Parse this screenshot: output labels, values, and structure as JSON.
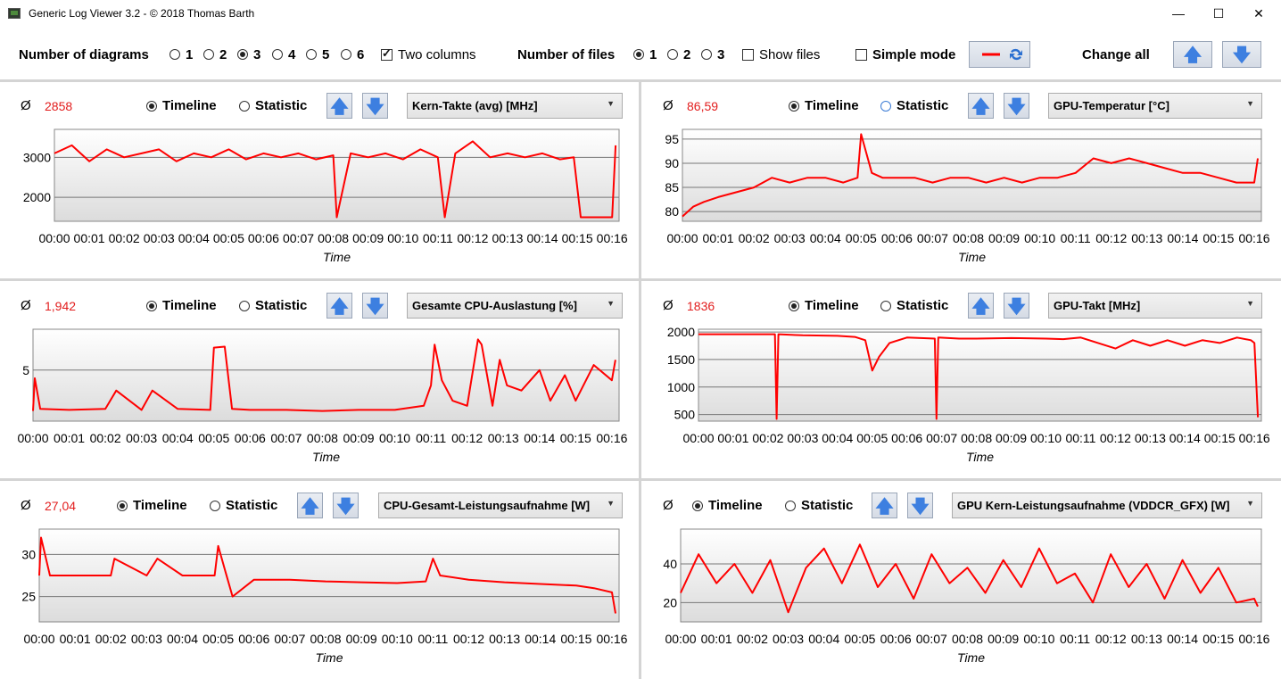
{
  "window": {
    "title": "Generic Log Viewer 3.2 - © 2018 Thomas Barth",
    "minimize": "—",
    "maximize": "☐",
    "close": "✕"
  },
  "toolbar": {
    "diagrams_label": "Number of diagrams",
    "diagram_options": [
      "1",
      "2",
      "3",
      "4",
      "5",
      "6"
    ],
    "diagram_selected": "3",
    "two_columns_label": "Two columns",
    "two_columns_checked": true,
    "files_label": "Number of files",
    "file_options": [
      "1",
      "2",
      "3"
    ],
    "file_selected": "1",
    "show_files_label": "Show files",
    "show_files_checked": false,
    "simple_mode_label": "Simple mode",
    "simple_mode_checked": false,
    "change_all_label": "Change all"
  },
  "common": {
    "avg_symbol": "Ø",
    "timeline_label": "Timeline",
    "statistic_label": "Statistic",
    "x_axis_title": "Time",
    "x_ticks": [
      "00:00",
      "00:01",
      "00:02",
      "00:03",
      "00:04",
      "00:05",
      "00:06",
      "00:07",
      "00:08",
      "00:09",
      "00:10",
      "00:11",
      "00:12",
      "00:13",
      "00:14",
      "00:15",
      "00:16"
    ]
  },
  "colors": {
    "series": "#ff0000",
    "average": "#e21d1d",
    "arrow": "#3d7fe0"
  },
  "panels": [
    {
      "id": "p1",
      "average": "2858",
      "sensor": "Kern-Takte (avg) [MHz]",
      "mode": "Timeline"
    },
    {
      "id": "p2",
      "average": "86,59",
      "sensor": "GPU-Temperatur [°C]",
      "mode": "Timeline"
    },
    {
      "id": "p3",
      "average": "1,942",
      "sensor": "Gesamte CPU-Auslastung [%]",
      "mode": "Timeline"
    },
    {
      "id": "p4",
      "average": "1836",
      "sensor": "GPU-Takt [MHz]",
      "mode": "Timeline"
    },
    {
      "id": "p5",
      "average": "27,04",
      "sensor": "CPU-Gesamt-Leistungsaufnahme [W]",
      "mode": "Timeline"
    },
    {
      "id": "p6",
      "average": "",
      "sensor": "GPU Kern-Leistungsaufnahme (VDDCR_GFX) [W]",
      "mode": "Timeline"
    }
  ],
  "chart_data": [
    {
      "type": "line",
      "title": "Kern-Takte (avg) [MHz]",
      "xlabel": "Time",
      "ylabel": "",
      "xlim": [
        0,
        16.2
      ],
      "ylim": [
        1400,
        3700
      ],
      "yticks": [
        2000,
        3000
      ],
      "x": [
        0,
        0.5,
        1,
        1.5,
        2,
        2.5,
        3,
        3.5,
        4,
        4.5,
        5,
        5.5,
        6,
        6.5,
        7,
        7.5,
        8,
        8.1,
        8.5,
        9,
        9.5,
        10,
        10.5,
        11,
        11.2,
        11.5,
        12,
        12.5,
        13,
        13.5,
        14,
        14.5,
        14.9,
        15.1,
        15.5,
        16,
        16.1
      ],
      "series": [
        {
          "values": [
            3100,
            3300,
            2900,
            3200,
            3000,
            3100,
            3200,
            2900,
            3100,
            3000,
            3200,
            2950,
            3100,
            3000,
            3100,
            2950,
            3050,
            1500,
            3100,
            3000,
            3100,
            2950,
            3200,
            3000,
            1500,
            3100,
            3400,
            3000,
            3100,
            3000,
            3100,
            2950,
            3000,
            1500,
            1500,
            1500,
            3300
          ]
        }
      ]
    },
    {
      "type": "line",
      "title": "GPU-Temperatur [°C]",
      "xlabel": "Time",
      "ylabel": "",
      "xlim": [
        0,
        16.2
      ],
      "ylim": [
        78,
        97
      ],
      "yticks": [
        80,
        85,
        90,
        95
      ],
      "x": [
        0,
        0.3,
        0.6,
        1,
        1.5,
        2,
        2.5,
        3,
        3.5,
        4,
        4.5,
        4.9,
        5.0,
        5.3,
        5.6,
        6,
        6.5,
        7,
        7.5,
        8,
        8.5,
        9,
        9.5,
        10,
        10.5,
        11,
        11.5,
        12,
        12.5,
        13,
        13.5,
        14,
        14.5,
        15,
        15.5,
        16,
        16.1
      ],
      "series": [
        {
          "values": [
            79,
            81,
            82,
            83,
            84,
            85,
            87,
            86,
            87,
            87,
            86,
            87,
            96,
            88,
            87,
            87,
            87,
            86,
            87,
            87,
            86,
            87,
            86,
            87,
            87,
            88,
            91,
            90,
            91,
            90,
            89,
            88,
            88,
            87,
            86,
            86,
            91
          ]
        }
      ]
    },
    {
      "type": "line",
      "title": "Gesamte CPU-Auslastung [%]",
      "xlabel": "Time",
      "ylabel": "",
      "xlim": [
        0,
        16.2
      ],
      "ylim": [
        0,
        9
      ],
      "yticks": [
        5
      ],
      "x": [
        0,
        0.05,
        0.2,
        1,
        2,
        2.3,
        3,
        3.3,
        4,
        4.9,
        5.0,
        5.3,
        5.5,
        6,
        7,
        8,
        9,
        10,
        10.8,
        11,
        11.1,
        11.3,
        11.6,
        12,
        12.3,
        12.4,
        12.7,
        12.9,
        13.1,
        13.5,
        14,
        14.3,
        14.7,
        15,
        15.5,
        16,
        16.1
      ],
      "series": [
        {
          "values": [
            1,
            4.2,
            1.2,
            1.1,
            1.2,
            3,
            1.1,
            3,
            1.2,
            1.1,
            7.2,
            7.3,
            1.2,
            1.1,
            1.1,
            1,
            1.1,
            1.1,
            1.5,
            3.5,
            7.5,
            4,
            2,
            1.5,
            8,
            7.5,
            1.5,
            6,
            3.5,
            3,
            5,
            2,
            4.5,
            2,
            5.5,
            4,
            6
          ]
        }
      ]
    },
    {
      "type": "line",
      "title": "GPU-Takt [MHz]",
      "xlabel": "Time",
      "ylabel": "",
      "xlim": [
        0,
        16.2
      ],
      "ylim": [
        380,
        2050
      ],
      "yticks": [
        500,
        1000,
        1500,
        2000
      ],
      "x": [
        0,
        1,
        2,
        2.2,
        2.25,
        2.3,
        3,
        4,
        4.5,
        4.8,
        5.0,
        5.2,
        5.5,
        6,
        6.8,
        6.85,
        6.9,
        7.5,
        8,
        9,
        10,
        10.5,
        11,
        11.5,
        12,
        12.5,
        13,
        13.5,
        14,
        14.5,
        15,
        15.5,
        15.9,
        16,
        16.1
      ],
      "series": [
        {
          "values": [
            1960,
            1960,
            1960,
            1960,
            420,
            1960,
            1940,
            1930,
            1910,
            1850,
            1300,
            1550,
            1800,
            1900,
            1880,
            420,
            1900,
            1880,
            1880,
            1890,
            1880,
            1870,
            1900,
            1800,
            1700,
            1850,
            1750,
            1850,
            1750,
            1850,
            1800,
            1900,
            1850,
            1800,
            450
          ]
        }
      ]
    },
    {
      "type": "line",
      "title": "CPU-Gesamt-Leistungsaufnahme [W]",
      "xlabel": "Time",
      "ylabel": "",
      "xlim": [
        0,
        16.2
      ],
      "ylim": [
        22,
        33
      ],
      "yticks": [
        25,
        30
      ],
      "x": [
        0,
        0.05,
        0.3,
        1,
        2,
        2.1,
        3,
        3.3,
        4,
        4.9,
        5.0,
        5.2,
        5.4,
        6,
        7,
        8,
        9,
        10,
        10.8,
        11,
        11.2,
        12,
        13,
        14,
        15,
        15.5,
        16,
        16.1
      ],
      "series": [
        {
          "values": [
            27.5,
            32,
            27.5,
            27.5,
            27.5,
            29.5,
            27.5,
            29.5,
            27.5,
            27.5,
            31,
            28,
            25,
            27,
            27,
            26.8,
            26.7,
            26.6,
            26.8,
            29.5,
            27.5,
            27,
            26.7,
            26.5,
            26.3,
            26,
            25.5,
            23
          ]
        }
      ]
    },
    {
      "type": "line",
      "title": "GPU Kern-Leistungsaufnahme (VDDCR_GFX) [W]",
      "xlabel": "Time",
      "ylabel": "",
      "xlim": [
        0,
        16.2
      ],
      "ylim": [
        10,
        58
      ],
      "yticks": [
        20,
        40
      ],
      "x": [
        0,
        0.5,
        1,
        1.5,
        2,
        2.5,
        3,
        3.5,
        4,
        4.5,
        5,
        5.5,
        6,
        6.5,
        7,
        7.5,
        8,
        8.5,
        9,
        9.5,
        10,
        10.5,
        11,
        11.5,
        12,
        12.5,
        13,
        13.5,
        14,
        14.5,
        15,
        15.5,
        16,
        16.1
      ],
      "series": [
        {
          "values": [
            25,
            45,
            30,
            40,
            25,
            42,
            15,
            38,
            48,
            30,
            50,
            28,
            40,
            22,
            45,
            30,
            38,
            25,
            42,
            28,
            48,
            30,
            35,
            20,
            45,
            28,
            40,
            22,
            42,
            25,
            38,
            20,
            22,
            18
          ]
        }
      ]
    }
  ]
}
